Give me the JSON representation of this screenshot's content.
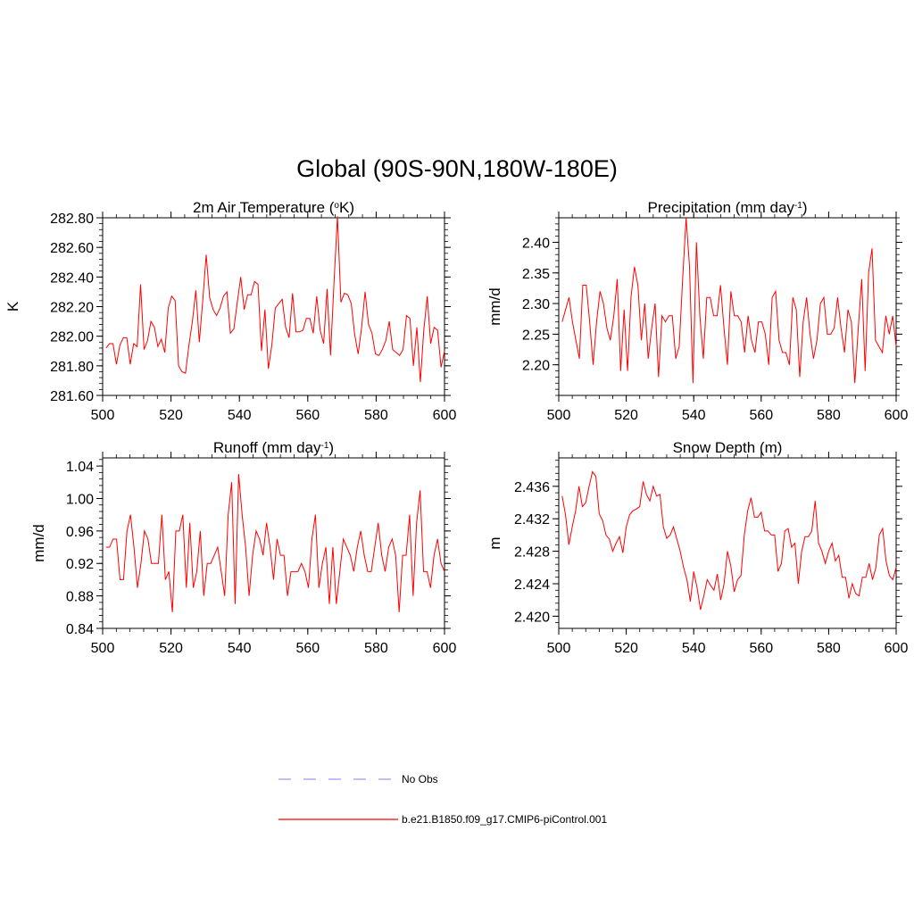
{
  "title": "Global (90S-90N,180W-180E)",
  "line_color": "#ff0000",
  "obs_color": "#9999ff",
  "chart_data": [
    {
      "type": "line",
      "title_main": "2m Air Temperature (",
      "title_sup": "o",
      "title_end": "K)",
      "ylabel": "K",
      "xlim": [
        500,
        600
      ],
      "ylim": [
        281.6,
        282.8
      ],
      "xticks": [
        "500",
        "520",
        "540",
        "560",
        "580",
        "600"
      ],
      "yticks": [
        "281.60",
        "281.80",
        "282.00",
        "282.20",
        "282.40",
        "282.60",
        "282.80"
      ],
      "y": [
        281.92,
        281.95,
        281.95,
        281.81,
        281.94,
        281.99,
        281.99,
        281.81,
        281.95,
        281.93,
        282.35,
        281.91,
        281.97,
        282.1,
        282.06,
        281.93,
        281.98,
        281.89,
        282.19,
        282.27,
        282.24,
        281.8,
        281.76,
        281.75,
        281.94,
        282.1,
        282.31,
        281.96,
        282.24,
        282.55,
        282.26,
        282.18,
        282.14,
        282.19,
        282.27,
        282.3,
        282.02,
        282.05,
        282.23,
        282.4,
        282.18,
        282.28,
        282.28,
        282.37,
        282.35,
        281.9,
        282.18,
        281.78,
        281.94,
        282.19,
        282.22,
        282.25,
        282.06,
        281.99,
        282.29,
        282.03,
        282.03,
        282.04,
        282.12,
        282.12,
        282.02,
        282.27,
        282.04,
        281.95,
        282.32,
        281.87,
        282.36,
        282.81,
        282.23,
        282.29,
        282.28,
        282.22,
        282.01,
        281.88,
        282.06,
        282.3,
        282.08,
        282.02,
        281.88,
        281.87,
        281.91,
        281.97,
        282.1,
        281.91,
        281.89,
        281.87,
        281.91,
        282.14,
        282.12,
        281.8,
        282.06,
        281.69,
        282.04,
        282.27,
        281.95,
        282.06,
        282.04,
        281.79,
        281.9
      ]
    },
    {
      "type": "line",
      "title_main": "Precipitation (mm day",
      "title_sup": "-1",
      "title_end": ")",
      "ylabel": "mm/d",
      "xlim": [
        500,
        600
      ],
      "ylim": [
        2.15,
        2.44
      ],
      "xticks": [
        "500",
        "520",
        "540",
        "560",
        "580",
        "600"
      ],
      "yticks": [
        "2.20",
        "2.25",
        "2.30",
        "2.35",
        "2.40"
      ],
      "y": [
        2.27,
        2.29,
        2.31,
        2.27,
        2.24,
        2.21,
        2.33,
        2.33,
        2.27,
        2.2,
        2.27,
        2.32,
        2.3,
        2.26,
        2.24,
        2.28,
        2.34,
        2.19,
        2.29,
        2.19,
        2.31,
        2.36,
        2.33,
        2.24,
        2.3,
        2.21,
        2.26,
        2.3,
        2.18,
        2.28,
        2.27,
        2.28,
        2.28,
        2.21,
        2.23,
        2.34,
        2.44,
        2.36,
        2.17,
        2.4,
        2.28,
        2.21,
        2.31,
        2.31,
        2.28,
        2.28,
        2.33,
        2.26,
        2.2,
        2.32,
        2.28,
        2.28,
        2.27,
        2.22,
        2.28,
        2.24,
        2.22,
        2.27,
        2.27,
        2.25,
        2.2,
        2.31,
        2.32,
        2.24,
        2.22,
        2.22,
        2.2,
        2.31,
        2.29,
        2.18,
        2.27,
        2.31,
        2.25,
        2.21,
        2.24,
        2.3,
        2.31,
        2.25,
        2.25,
        2.26,
        2.31,
        2.26,
        2.22,
        2.29,
        2.27,
        2.17,
        2.26,
        2.34,
        2.19,
        2.35,
        2.39,
        2.24,
        2.23,
        2.22,
        2.28,
        2.25,
        2.28,
        2.23
      ]
    },
    {
      "type": "line",
      "title_main": "Runoff (mm day",
      "title_sup": "-1",
      "title_end": ")",
      "ylabel": "mm/d",
      "xlim": [
        500,
        600
      ],
      "ylim": [
        0.84,
        1.05
      ],
      "xticks": [
        "500",
        "520",
        "540",
        "560",
        "580",
        "600"
      ],
      "yticks": [
        "0.84",
        "0.88",
        "0.92",
        "0.96",
        "1.00",
        "1.04"
      ],
      "y": [
        0.94,
        0.94,
        0.95,
        0.95,
        0.9,
        0.9,
        0.96,
        0.98,
        0.94,
        0.89,
        0.92,
        0.96,
        0.95,
        0.92,
        0.92,
        0.92,
        0.98,
        0.9,
        0.91,
        0.86,
        0.96,
        0.96,
        0.98,
        0.89,
        0.97,
        0.89,
        0.91,
        0.96,
        0.88,
        0.92,
        0.92,
        0.93,
        0.94,
        0.91,
        0.88,
        0.98,
        1.02,
        0.87,
        1.03,
        0.98,
        0.94,
        0.88,
        0.93,
        0.96,
        0.95,
        0.93,
        0.97,
        0.94,
        0.9,
        0.95,
        0.93,
        0.93,
        0.88,
        0.91,
        0.91,
        0.91,
        0.92,
        0.91,
        0.89,
        0.95,
        0.98,
        0.89,
        0.92,
        0.94,
        0.87,
        0.94,
        0.87,
        0.91,
        0.95,
        0.94,
        0.93,
        0.91,
        0.94,
        0.96,
        0.93,
        0.91,
        0.91,
        0.94,
        0.97,
        0.93,
        0.91,
        0.94,
        0.95,
        0.93,
        0.86,
        0.93,
        0.93,
        0.98,
        0.88,
        0.97,
        1.01,
        0.91,
        0.91,
        0.89,
        0.93,
        0.95,
        0.92,
        0.91
      ]
    },
    {
      "type": "line",
      "title_main": "Snow Depth (m)",
      "title_sup": "",
      "title_end": "",
      "ylabel": "m",
      "xlim": [
        500,
        600
      ],
      "ylim": [
        2.4185,
        2.4395
      ],
      "xticks": [
        "500",
        "520",
        "540",
        "560",
        "580",
        "600"
      ],
      "yticks": [
        "2.420",
        "2.424",
        "2.428",
        "2.432",
        "2.436"
      ],
      "y": [
        2.4348,
        2.4325,
        2.4288,
        2.431,
        2.433,
        2.436,
        2.4335,
        2.434,
        2.436,
        2.4378,
        2.4372,
        2.4326,
        2.4318,
        2.43,
        2.4295,
        2.428,
        2.429,
        2.4298,
        2.4278,
        2.431,
        2.4325,
        2.433,
        2.4332,
        2.4335,
        2.4366,
        2.435,
        2.4342,
        2.436,
        2.4348,
        2.435,
        2.431,
        2.4296,
        2.43,
        2.431,
        2.4295,
        2.428,
        2.426,
        2.4245,
        2.4218,
        2.4255,
        2.4235,
        2.4208,
        2.4225,
        2.4245,
        2.4238,
        2.4232,
        2.4252,
        2.422,
        2.424,
        2.428,
        2.4262,
        2.423,
        2.4245,
        2.425,
        2.43,
        2.433,
        2.4346,
        2.4322,
        2.4322,
        2.4328,
        2.4305,
        2.4305,
        2.43,
        2.43,
        2.4255,
        2.4265,
        2.4305,
        2.4308,
        2.4285,
        2.429,
        2.424,
        2.428,
        2.4298,
        2.4298,
        2.4305,
        2.4342,
        2.429,
        2.428,
        2.4265,
        2.428,
        2.429,
        2.4268,
        2.4275,
        2.4248,
        2.4248,
        2.4222,
        2.424,
        2.4228,
        2.4225,
        2.4248,
        2.4248,
        2.4265,
        2.4245,
        2.426,
        2.43,
        2.4308,
        2.4268,
        2.425,
        2.4245,
        2.426
      ]
    }
  ],
  "legend": {
    "obs_label": "No Obs",
    "case_label": "b.e21.B1850.f09_g17.CMIP6-piControl.001"
  }
}
